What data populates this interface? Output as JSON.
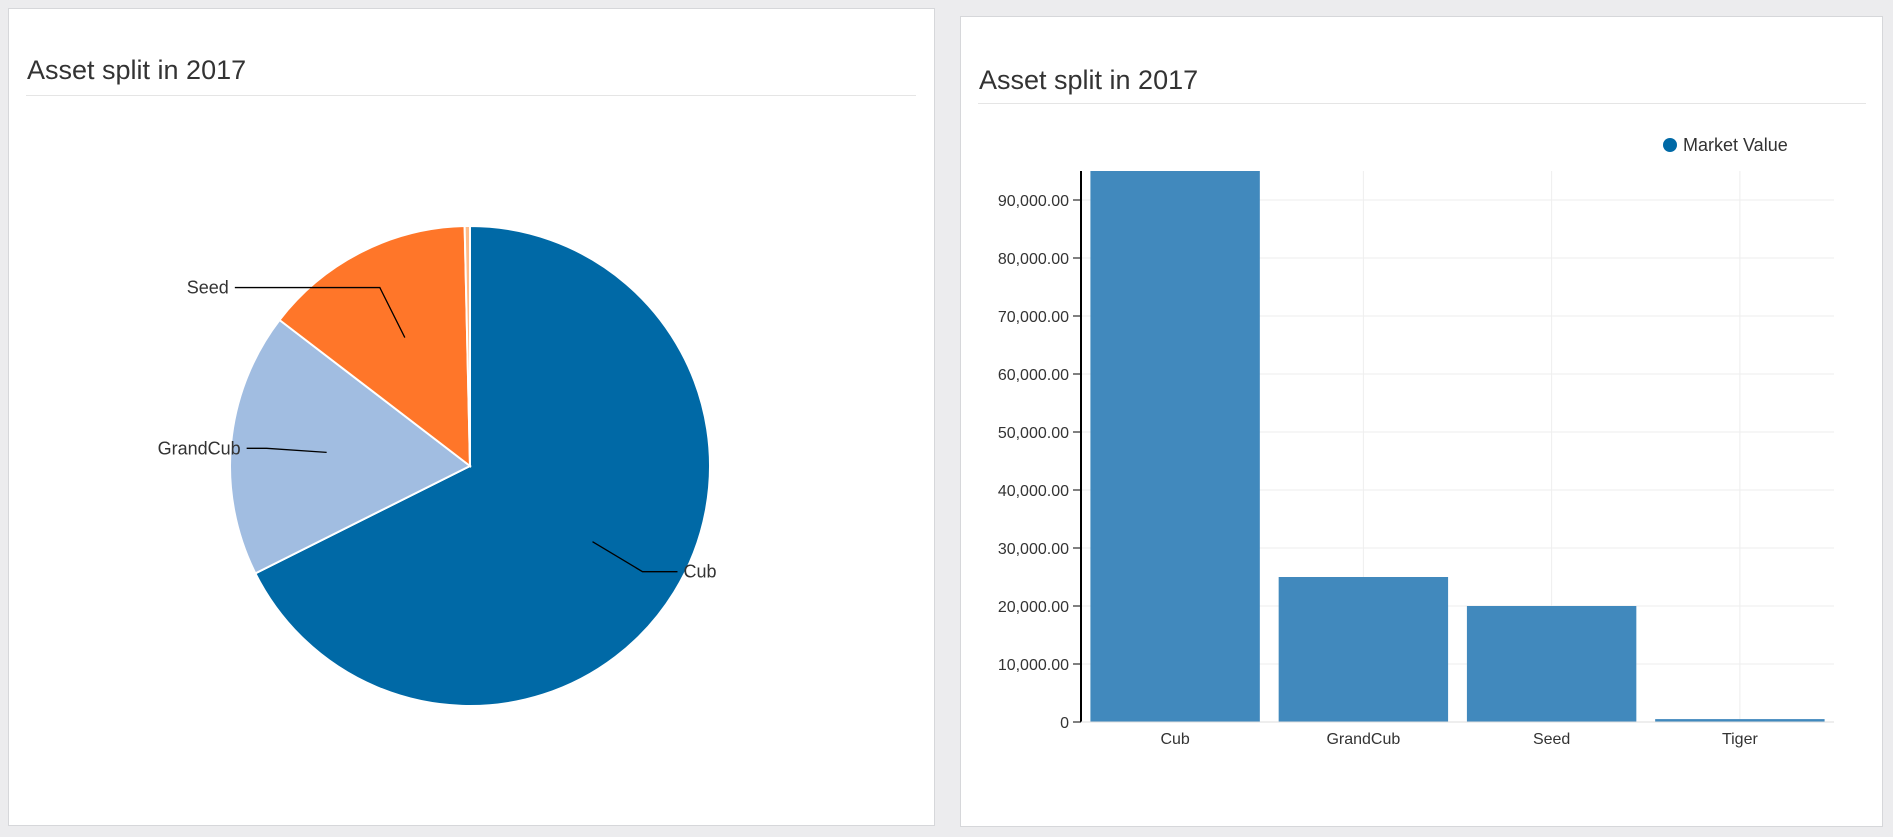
{
  "panels": [
    {
      "title": "Asset split in 2017"
    },
    {
      "title": "Asset split in 2017"
    }
  ],
  "colors": {
    "primary": "#0069a6",
    "light_blue": "#a1bde1",
    "orange": "#ff7629",
    "peach": "#ffbb88",
    "bar": "#4189bd",
    "grid": "#eeeeee",
    "axis": "#000000"
  },
  "chart_data": [
    {
      "type": "pie",
      "title": "Asset split in 2017",
      "slices": [
        {
          "label": "Cub",
          "value": 95000,
          "color": "#0069a6",
          "label_side": "right"
        },
        {
          "label": "GrandCub",
          "value": 25000,
          "color": "#a1bde1",
          "label_side": "left"
        },
        {
          "label": "Seed",
          "value": 20000,
          "color": "#ff7629",
          "label_side": "left"
        },
        {
          "label": "",
          "value": 500,
          "color": "#ffbb88",
          "label_side": "none"
        }
      ]
    },
    {
      "type": "bar",
      "title": "Asset split in 2017",
      "categories": [
        "Cub",
        "GrandCub",
        "Seed",
        "Tiger"
      ],
      "series": [
        {
          "name": "Market Value",
          "values": [
            95000,
            25000,
            20000,
            500
          ],
          "color": "#4189bd"
        }
      ],
      "ylim": [
        0,
        95000
      ],
      "yticks": [
        0,
        10000,
        20000,
        30000,
        40000,
        50000,
        60000,
        70000,
        80000,
        90000
      ],
      "ytick_labels": [
        "0",
        "10,000.00",
        "20,000.00",
        "30,000.00",
        "40,000.00",
        "50,000.00",
        "60,000.00",
        "70,000.00",
        "80,000.00",
        "90,000.00"
      ],
      "legend": {
        "position": "top-right",
        "label": "Market Value"
      },
      "grid": true
    }
  ]
}
